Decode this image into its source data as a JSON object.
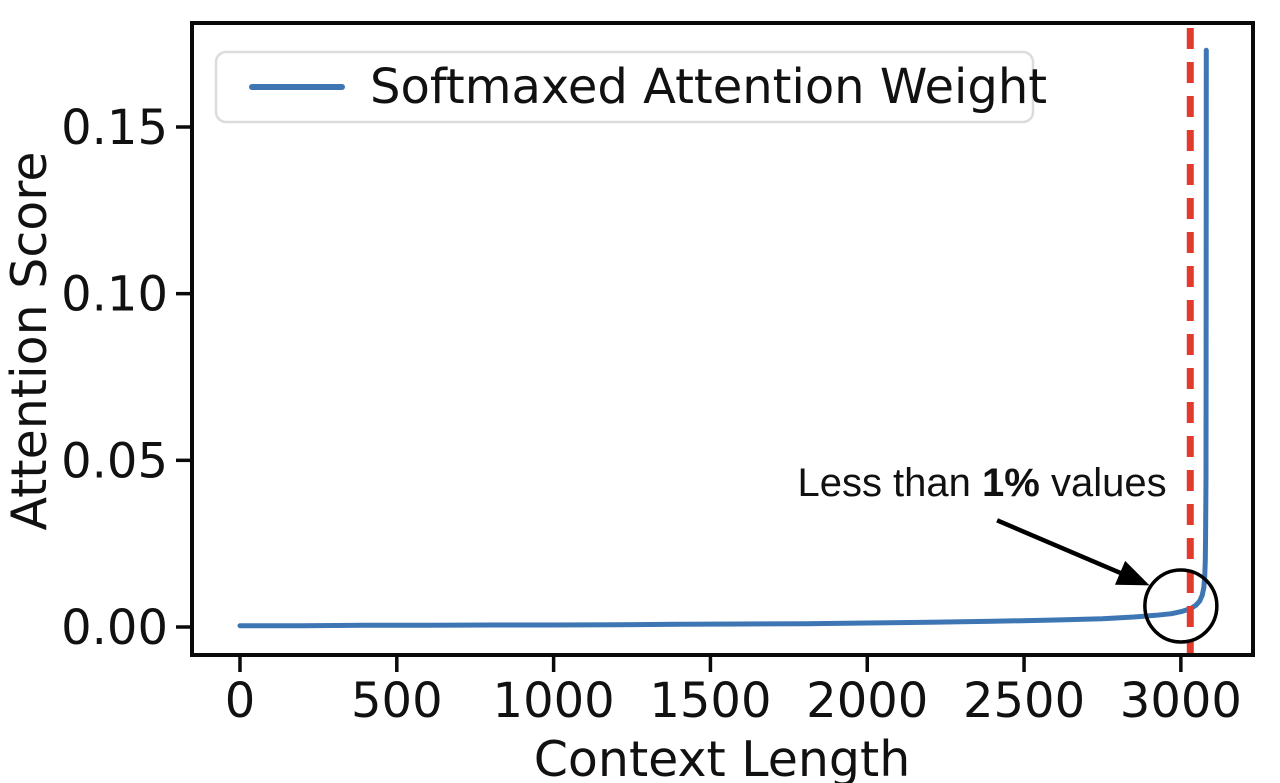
{
  "chart_data": {
    "type": "line",
    "title": "",
    "xlabel": "Context Length",
    "ylabel": "Attention Score",
    "xlim": [
      -153,
      3230
    ],
    "ylim": [
      -0.0084,
      0.1812
    ],
    "grid": false,
    "x_ticks": [
      0,
      500,
      1000,
      1500,
      2000,
      2500,
      3000
    ],
    "x_tick_labels": [
      "0",
      "500",
      "1000",
      "1500",
      "2000",
      "2500",
      "3000"
    ],
    "y_ticks": [
      0.0,
      0.05,
      0.1,
      0.15
    ],
    "y_tick_labels": [
      "0.00",
      "0.05",
      "0.10",
      "0.15"
    ],
    "legend": {
      "position": "upper-left",
      "entries": [
        {
          "label": "Softmaxed Attention Weight",
          "color": "#3E76B4"
        }
      ]
    },
    "series": [
      {
        "name": "Softmaxed Attention Weight",
        "color": "#3E76B4",
        "points": [
          [
            0,
            0.0004
          ],
          [
            200,
            0.0004
          ],
          [
            400,
            0.0005
          ],
          [
            600,
            0.0005
          ],
          [
            800,
            0.0006
          ],
          [
            1000,
            0.0006
          ],
          [
            1200,
            0.0007
          ],
          [
            1400,
            0.0008
          ],
          [
            1600,
            0.0009
          ],
          [
            1800,
            0.001
          ],
          [
            2000,
            0.0012
          ],
          [
            2200,
            0.0014
          ],
          [
            2400,
            0.0017
          ],
          [
            2600,
            0.0021
          ],
          [
            2750,
            0.0025
          ],
          [
            2850,
            0.003
          ],
          [
            2920,
            0.0035
          ],
          [
            2970,
            0.004
          ],
          [
            3005,
            0.0047
          ],
          [
            3030,
            0.0055
          ],
          [
            3048,
            0.0065
          ],
          [
            3060,
            0.0078
          ],
          [
            3068,
            0.0095
          ],
          [
            3073,
            0.0118
          ],
          [
            3076,
            0.015
          ],
          [
            3078,
            0.02
          ],
          [
            3079,
            0.028
          ],
          [
            3080,
            0.045
          ],
          [
            3080.5,
            0.08
          ],
          [
            3081,
            0.173
          ]
        ]
      }
    ],
    "vline": {
      "x": 3030,
      "color": "#E23B2E",
      "style": "dashed"
    },
    "annotation": {
      "text_prefix": "Less than ",
      "text_bold": "1%",
      "text_suffix": " values",
      "text_pos": [
        2366,
        0.0432
      ],
      "arrow_start": [
        2414,
        0.032
      ],
      "arrow_tip": [
        2900,
        0.0125
      ],
      "circle_center": [
        3000,
        0.0063
      ],
      "circle_radius_px": 36,
      "color": "#000000"
    },
    "colors": {
      "axis": "#0a0a0a",
      "text": "#111111",
      "line": "#3E76B4",
      "vline": "#E23B2E",
      "legend_border": "#dcdcdc",
      "background": "#ffffff"
    }
  }
}
